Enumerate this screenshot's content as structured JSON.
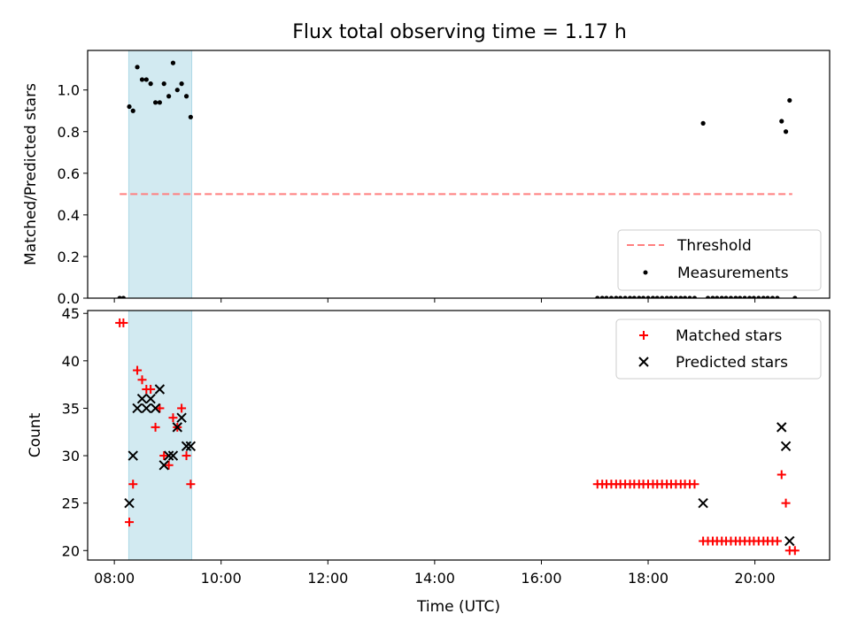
{
  "title": "Flux total observing time = 1.17 h",
  "colors": {
    "band": "#add8e6",
    "threshold": "#ff7f7f",
    "matched": "#ff0000",
    "predicted": "#000000",
    "measurement": "#000000"
  },
  "chart_data": [
    {
      "type": "scatter",
      "ylabel": "Matched/Predicted stars",
      "xlim": [
        7.5,
        21.4
      ],
      "ylim": [
        0,
        1.19
      ],
      "yticks": [
        0.0,
        0.2,
        0.4,
        0.6,
        0.8,
        1.0
      ],
      "ytick_labels": [
        "0.0",
        "0.2",
        "0.4",
        "0.6",
        "0.8",
        "1.0"
      ],
      "legend_position": "lower-right",
      "highlight_band": [
        8.27,
        9.45
      ],
      "threshold": {
        "name": "Threshold",
        "value": 0.5,
        "x_range": [
          8.1,
          20.7
        ]
      },
      "measurements": {
        "name": "Measurements",
        "x": [
          8.1,
          8.17,
          8.28,
          8.35,
          8.43,
          8.52,
          8.6,
          8.68,
          8.77,
          8.85,
          8.93,
          9.02,
          9.1,
          9.18,
          9.26,
          9.35,
          9.43,
          17.05,
          17.14,
          17.22,
          17.31,
          17.4,
          17.48,
          17.57,
          17.66,
          17.74,
          17.83,
          17.91,
          18.0,
          18.09,
          18.17,
          18.26,
          18.35,
          18.43,
          18.52,
          18.61,
          18.69,
          18.78,
          18.87,
          19.03,
          19.12,
          19.21,
          19.29,
          19.38,
          19.46,
          19.55,
          19.64,
          19.72,
          19.81,
          19.9,
          19.98,
          20.07,
          20.16,
          20.24,
          20.33,
          20.42,
          20.5,
          20.58,
          20.65,
          20.75
        ],
        "y": [
          0.0,
          0.0,
          0.92,
          0.9,
          1.11,
          1.05,
          1.05,
          1.03,
          0.94,
          0.94,
          1.03,
          0.97,
          1.13,
          1.0,
          1.03,
          0.97,
          0.87,
          0.0,
          0.0,
          0.0,
          0.0,
          0.0,
          0.0,
          0.0,
          0.0,
          0.0,
          0.0,
          0.0,
          0.0,
          0.0,
          0.0,
          0.0,
          0.0,
          0.0,
          0.0,
          0.0,
          0.0,
          0.0,
          0.0,
          0.84,
          0.0,
          0.0,
          0.0,
          0.0,
          0.0,
          0.0,
          0.0,
          0.0,
          0.0,
          0.0,
          0.0,
          0.0,
          0.0,
          0.0,
          0.0,
          0.0,
          0.85,
          0.8,
          0.95,
          0.0
        ]
      }
    },
    {
      "type": "scatter",
      "xlabel": "Time (UTC)",
      "ylabel": "Count",
      "xlim": [
        7.5,
        21.4
      ],
      "ylim": [
        19,
        45.3
      ],
      "xticks": [
        8,
        10,
        12,
        14,
        16,
        18,
        20
      ],
      "xtick_labels": [
        "08:00",
        "10:00",
        "12:00",
        "14:00",
        "16:00",
        "18:00",
        "20:00"
      ],
      "yticks": [
        20,
        25,
        30,
        35,
        40,
        45
      ],
      "ytick_labels": [
        "20",
        "25",
        "30",
        "35",
        "40",
        "45"
      ],
      "legend_position": "upper-right",
      "highlight_band": [
        8.27,
        9.45
      ],
      "series": [
        {
          "name": "Matched stars",
          "marker": "plus",
          "x": [
            8.1,
            8.17,
            8.28,
            8.35,
            8.43,
            8.52,
            8.6,
            8.68,
            8.77,
            8.85,
            8.93,
            9.02,
            9.1,
            9.18,
            9.26,
            9.35,
            9.43,
            17.05,
            17.14,
            17.22,
            17.31,
            17.4,
            17.48,
            17.57,
            17.66,
            17.74,
            17.83,
            17.91,
            18.0,
            18.09,
            18.17,
            18.26,
            18.35,
            18.43,
            18.52,
            18.61,
            18.69,
            18.78,
            18.87,
            19.03,
            19.12,
            19.21,
            19.29,
            19.38,
            19.46,
            19.55,
            19.64,
            19.72,
            19.81,
            19.9,
            19.98,
            20.07,
            20.16,
            20.24,
            20.33,
            20.42,
            20.5,
            20.58,
            20.65,
            20.75
          ],
          "y": [
            44,
            44,
            23,
            27,
            39,
            38,
            37,
            37,
            33,
            35,
            30,
            29,
            34,
            33,
            35,
            30,
            27,
            27,
            27,
            27,
            27,
            27,
            27,
            27,
            27,
            27,
            27,
            27,
            27,
            27,
            27,
            27,
            27,
            27,
            27,
            27,
            27,
            27,
            27,
            21,
            21,
            21,
            21,
            21,
            21,
            21,
            21,
            21,
            21,
            21,
            21,
            21,
            21,
            21,
            21,
            21,
            28,
            25,
            20,
            20
          ]
        },
        {
          "name": "Predicted stars",
          "marker": "x",
          "x": [
            8.28,
            8.35,
            8.43,
            8.52,
            8.6,
            8.68,
            8.77,
            8.85,
            8.93,
            9.02,
            9.1,
            9.18,
            9.26,
            9.35,
            9.43,
            19.03,
            20.5,
            20.58,
            20.65
          ],
          "y": [
            25,
            30,
            35,
            36,
            35,
            36,
            35,
            37,
            29,
            30,
            30,
            33,
            34,
            31,
            31,
            25,
            33,
            31,
            21
          ]
        }
      ]
    }
  ]
}
